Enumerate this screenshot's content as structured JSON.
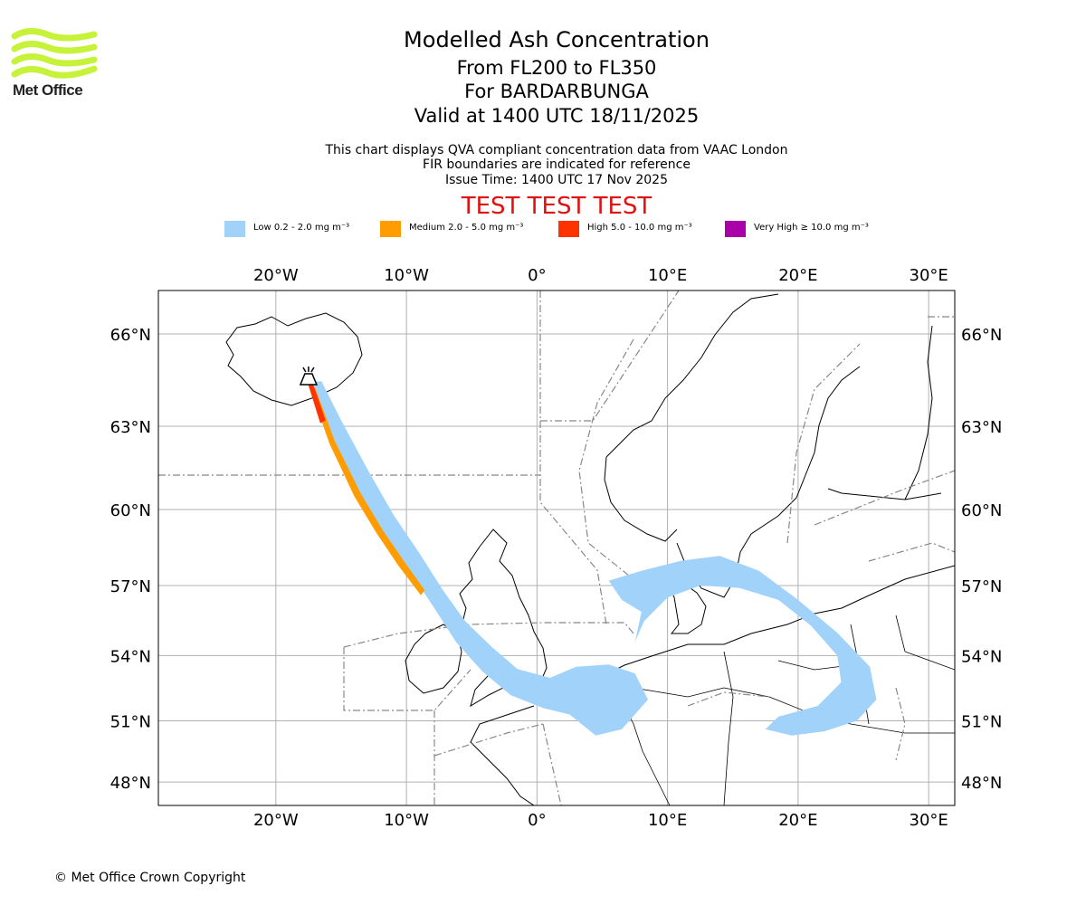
{
  "header": {
    "title": "Modelled Ash Concentration",
    "subtitle_level": "From FL200 to FL350",
    "subtitle_volcano": "For BARDARBUNGA",
    "subtitle_valid": "Valid at 1400 UTC 18/11/2025",
    "info_line1": "This chart displays QVA compliant concentration data from VAAC London",
    "info_line2": "FIR boundaries are indicated for reference",
    "info_line3": "Issue Time: 1400 UTC 17 Nov 2025",
    "test_banner": "TEST TEST TEST"
  },
  "logo": {
    "text": "Met Office",
    "icon": "met-office-wave-icon",
    "color": "#c6f33a"
  },
  "legend": [
    {
      "label": "Low 0.2 - 2.0 mg m⁻³",
      "color": "#a0d2fa"
    },
    {
      "label": "Medium 2.0 - 5.0 mg m⁻³",
      "color": "#ff9c00"
    },
    {
      "label": "High 5.0 - 10.0 mg m⁻³",
      "color": "#ff3300"
    },
    {
      "label": "Very High ≥ 10.0 mg m⁻³",
      "color": "#aa00aa"
    }
  ],
  "map": {
    "lon_range": [
      -29,
      32
    ],
    "lat_range": [
      46.8,
      67.3
    ],
    "lon_ticks": [
      {
        "value": -20,
        "label": "20°W"
      },
      {
        "value": -10,
        "label": "10°W"
      },
      {
        "value": 0,
        "label": "0°"
      },
      {
        "value": 10,
        "label": "10°E"
      },
      {
        "value": 20,
        "label": "20°E"
      },
      {
        "value": 30,
        "label": "30°E"
      }
    ],
    "lat_ticks": [
      {
        "value": 48,
        "label": "48°N"
      },
      {
        "value": 51,
        "label": "51°N"
      },
      {
        "value": 54,
        "label": "54°N"
      },
      {
        "value": 57,
        "label": "57°N"
      },
      {
        "value": 60,
        "label": "60°N"
      },
      {
        "value": 63,
        "label": "63°N"
      },
      {
        "value": 66,
        "label": "66°N"
      }
    ],
    "volcano": {
      "name": "BARDARBUNGA",
      "lon": -17.5,
      "lat": 64.6,
      "icon": "volcano-icon"
    },
    "ash": {
      "low": [
        [
          -17.2,
          64.5
        ],
        [
          -15.5,
          62.5
        ],
        [
          -13.5,
          60.5
        ],
        [
          -11.5,
          58.8
        ],
        [
          -9.5,
          57.4
        ],
        [
          -7.8,
          56.0
        ],
        [
          -6.2,
          54.6
        ],
        [
          -4.2,
          53.3
        ],
        [
          -2.0,
          52.2
        ],
        [
          0.5,
          51.6
        ],
        [
          2.5,
          51.3
        ],
        [
          4.5,
          50.3
        ],
        [
          6.5,
          50.6
        ],
        [
          8.5,
          52.0
        ],
        [
          7.5,
          53.2
        ],
        [
          5.5,
          53.6
        ],
        [
          3.0,
          53.5
        ],
        [
          1.0,
          53.0
        ],
        [
          -1.5,
          53.4
        ],
        [
          -3.5,
          54.4
        ],
        [
          -5.5,
          55.5
        ],
        [
          -7.2,
          56.8
        ],
        [
          -9.0,
          58.3
        ],
        [
          -11.0,
          59.8
        ],
        [
          -13.0,
          61.5
        ],
        [
          -15.0,
          63.2
        ],
        [
          -16.5,
          64.5
        ]
      ],
      "medium": [
        [
          -17.0,
          64.3
        ],
        [
          -15.5,
          62.5
        ],
        [
          -13.5,
          60.6
        ],
        [
          -11.8,
          59.2
        ],
        [
          -10.2,
          58.0
        ],
        [
          -8.6,
          56.8
        ],
        [
          -8.9,
          56.6
        ],
        [
          -10.6,
          57.8
        ],
        [
          -12.3,
          59.1
        ],
        [
          -14.0,
          60.5
        ],
        [
          -15.9,
          62.4
        ],
        [
          -17.3,
          64.2
        ]
      ],
      "high": [
        [
          -17.3,
          64.6
        ],
        [
          -16.2,
          63.2
        ],
        [
          -16.6,
          63.1
        ],
        [
          -17.6,
          64.5
        ]
      ],
      "low_blobs": [
        [
          [
            5.5,
            57.2
          ],
          [
            8.0,
            57.6
          ],
          [
            11.0,
            58.0
          ],
          [
            14.0,
            58.2
          ],
          [
            17.0,
            57.6
          ],
          [
            20.0,
            56.4
          ],
          [
            23.0,
            55.0
          ],
          [
            25.5,
            53.5
          ],
          [
            26.0,
            52.0
          ],
          [
            24.5,
            51.0
          ],
          [
            22.0,
            50.5
          ],
          [
            19.5,
            50.3
          ],
          [
            17.5,
            50.6
          ],
          [
            18.5,
            51.2
          ],
          [
            21.5,
            51.7
          ],
          [
            23.3,
            52.8
          ],
          [
            23.0,
            54.0
          ],
          [
            21.0,
            55.3
          ],
          [
            18.5,
            56.4
          ],
          [
            15.5,
            56.9
          ],
          [
            12.5,
            57.0
          ],
          [
            10.0,
            56.5
          ],
          [
            8.2,
            55.5
          ],
          [
            7.5,
            54.6
          ],
          [
            8.0,
            55.9
          ],
          [
            6.5,
            56.4
          ]
        ]
      ]
    }
  },
  "footer": {
    "copyright": "© Met Office Crown Copyright"
  }
}
